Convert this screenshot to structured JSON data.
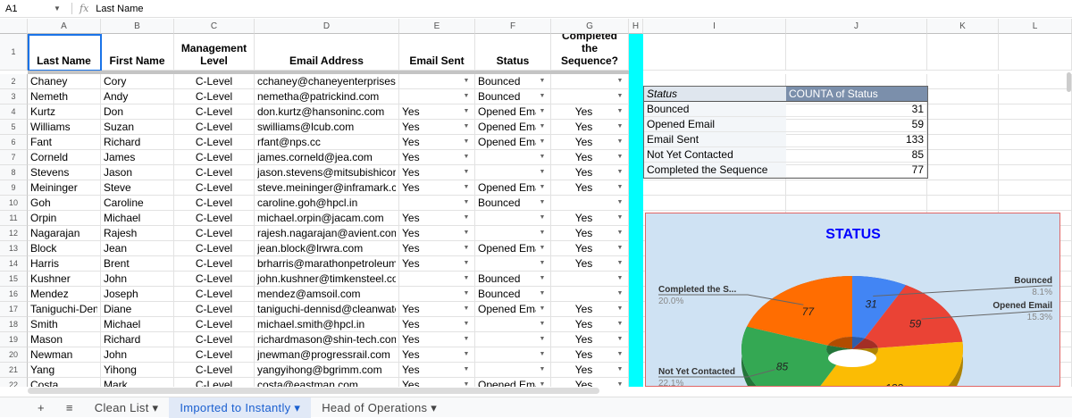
{
  "formula_bar": {
    "cell_ref": "A1",
    "fx_label": "fx",
    "value": "Last Name"
  },
  "columns": [
    "A",
    "B",
    "C",
    "D",
    "E",
    "F",
    "G",
    "H",
    "I",
    "J",
    "K",
    "L"
  ],
  "headers": [
    "Last Name",
    "First Name",
    "Management Level",
    "Email Address",
    "Email Sent",
    "Status",
    "Completed the Sequence?"
  ],
  "rows": [
    [
      "Chaney",
      "Cory",
      "C-Level",
      "cchaney@chaneyenterprises.com",
      "",
      "Bounced",
      ""
    ],
    [
      "Nemeth",
      "Andy",
      "C-Level",
      "nemetha@patrickind.com",
      "",
      "Bounced",
      ""
    ],
    [
      "Kurtz",
      "Don",
      "C-Level",
      "don.kurtz@hansoninc.com",
      "Yes",
      "Opened Email",
      "Yes"
    ],
    [
      "Williams",
      "Suzan",
      "C-Level",
      "swilliams@lcub.com",
      "Yes",
      "Opened Email",
      "Yes"
    ],
    [
      "Fant",
      "Richard",
      "C-Level",
      "rfant@nps.cc",
      "Yes",
      "Opened Email",
      "Yes"
    ],
    [
      "Corneld",
      "James",
      "C-Level",
      "james.corneld@jea.com",
      "Yes",
      "",
      "Yes"
    ],
    [
      "Stevens",
      "Jason",
      "C-Level",
      "jason.stevens@mitsubishicorp.com",
      "Yes",
      "",
      "Yes"
    ],
    [
      "Meininger",
      "Steve",
      "C-Level",
      "steve.meininger@inframark.com",
      "Yes",
      "Opened Email",
      "Yes"
    ],
    [
      "Goh",
      "Caroline",
      "C-Level",
      "caroline.goh@hpcl.in",
      "",
      "Bounced",
      ""
    ],
    [
      "Orpin",
      "Michael",
      "C-Level",
      "michael.orpin@jacam.com",
      "Yes",
      "",
      "Yes"
    ],
    [
      "Nagarajan",
      "Rajesh",
      "C-Level",
      "rajesh.nagarajan@avient.com",
      "Yes",
      "",
      "Yes"
    ],
    [
      "Block",
      "Jean",
      "C-Level",
      "jean.block@lrwra.com",
      "Yes",
      "Opened Email",
      "Yes"
    ],
    [
      "Harris",
      "Brent",
      "C-Level",
      "brharris@marathonpetroleum.com",
      "Yes",
      "",
      "Yes"
    ],
    [
      "Kushner",
      "John",
      "C-Level",
      "john.kushner@timkensteel.com",
      "",
      "Bounced",
      ""
    ],
    [
      "Mendez",
      "Joseph",
      "C-Level",
      "mendez@amsoil.com",
      "",
      "Bounced",
      ""
    ],
    [
      "Taniguchi-Dennis",
      "Diane",
      "C-Level",
      "taniguchi-dennisd@cleanwaterservices.org",
      "Yes",
      "Opened Email",
      "Yes"
    ],
    [
      "Smith",
      "Michael",
      "C-Level",
      "michael.smith@hpcl.in",
      "Yes",
      "",
      "Yes"
    ],
    [
      "Mason",
      "Richard",
      "C-Level",
      "richardmason@shin-tech.com",
      "Yes",
      "",
      "Yes"
    ],
    [
      "Newman",
      "John",
      "C-Level",
      "jnewman@progressrail.com",
      "Yes",
      "",
      "Yes"
    ],
    [
      "Yang",
      "Yihong",
      "C-Level",
      "yangyihong@bgrimm.com",
      "Yes",
      "",
      "Yes"
    ],
    [
      "Costa",
      "Mark",
      "C-Level",
      "costa@eastman.com",
      "Yes",
      "Opened Email",
      "Yes"
    ]
  ],
  "pivot": {
    "header": [
      "Status",
      "COUNTA of Status"
    ],
    "rows": [
      [
        "Bounced",
        "31"
      ],
      [
        "Opened Email",
        "59"
      ],
      [
        "Email Sent",
        "133"
      ],
      [
        "Not Yet Contacted",
        "85"
      ],
      [
        "Completed the Sequence",
        "77"
      ]
    ]
  },
  "chart_data": {
    "type": "pie",
    "title": "STATUS",
    "style": "3d-donut",
    "slices": [
      {
        "label": "Bounced",
        "value": 31,
        "percent": "8.1%",
        "color": "#4285f4"
      },
      {
        "label": "Opened Email",
        "value": 59,
        "percent": "15.3%",
        "color": "#ea4335"
      },
      {
        "label": "Email Sent",
        "value": 133,
        "color": "#fbbc04"
      },
      {
        "label": "Not Yet Contacted",
        "value": 85,
        "percent": "22.1%",
        "color": "#34a853"
      },
      {
        "label": "Completed the S...",
        "value": 77,
        "percent": "20.0%",
        "color": "#ff6d01"
      }
    ],
    "title_color": "#0000ff",
    "background": "#cfe2f3"
  },
  "tabs": {
    "add": "+",
    "menu": "≡",
    "items": [
      {
        "label": "Clean List",
        "active": false
      },
      {
        "label": "Imported to Instantly",
        "active": true
      },
      {
        "label": "Head of Operations",
        "active": false
      }
    ]
  }
}
